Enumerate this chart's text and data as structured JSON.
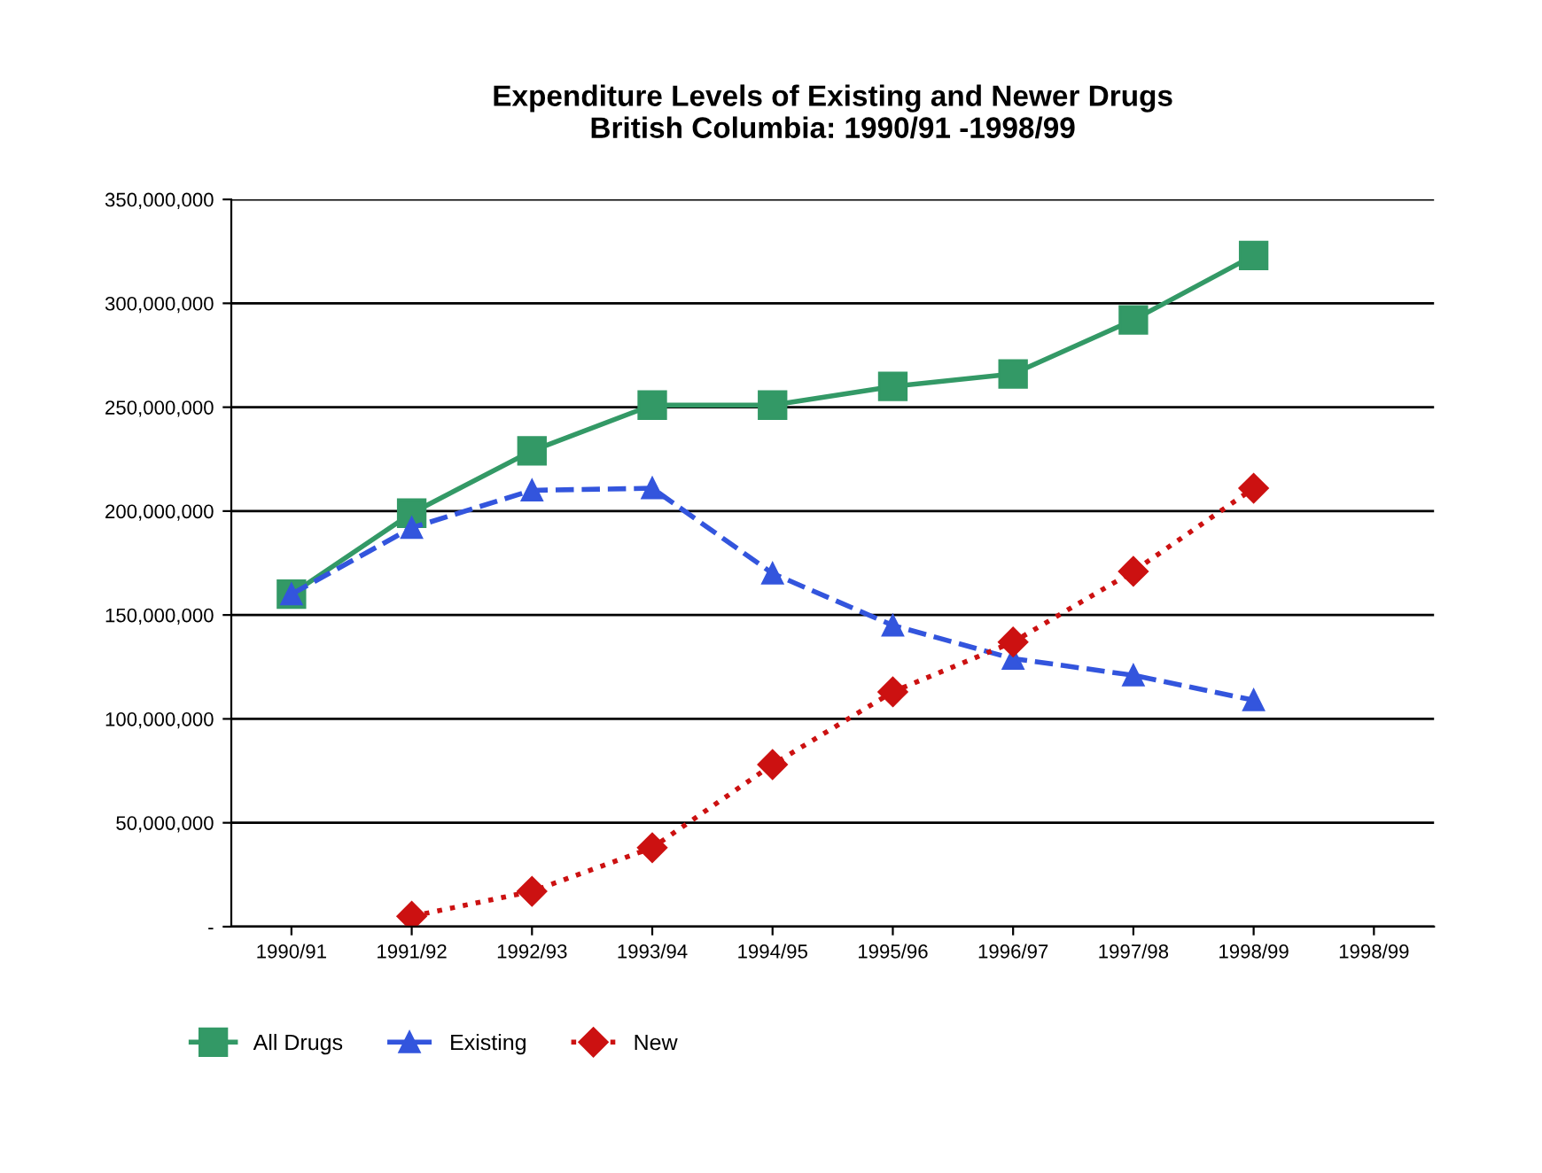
{
  "chart_data": {
    "type": "line",
    "title": "Expenditure Levels of Existing and Newer Drugs\nBritish Columbia: 1990/91 -1998/99",
    "categories": [
      "1990/91",
      "1991/92",
      "1992/93",
      "1993/94",
      "1994/95",
      "1995/96",
      "1996/97",
      "1997/98",
      "1998/99",
      "1998/99"
    ],
    "series": [
      {
        "name": "All Drugs",
        "color": "#339966",
        "marker": "square",
        "line_style": "solid",
        "values": [
          160000000,
          199000000,
          229000000,
          251000000,
          251000000,
          260000000,
          266000000,
          292000000,
          323000000,
          null
        ]
      },
      {
        "name": "Existing",
        "color": "#3355dd",
        "marker": "triangle",
        "line_style": "dashed",
        "values": [
          160000000,
          192000000,
          210000000,
          211000000,
          170000000,
          145000000,
          129000000,
          121000000,
          109000000,
          null
        ]
      },
      {
        "name": "New",
        "color": "#cc1111",
        "marker": "diamond",
        "line_style": "dotted",
        "values": [
          null,
          5000000,
          17000000,
          38000000,
          78000000,
          113000000,
          137000000,
          171000000,
          211000000,
          null
        ]
      }
    ],
    "ylim": [
      0,
      350000000
    ],
    "yticks": [
      {
        "value": 0,
        "label": "-"
      },
      {
        "value": 50000000,
        "label": "50,000,000"
      },
      {
        "value": 100000000,
        "label": "100,000,000"
      },
      {
        "value": 150000000,
        "label": "150,000,000"
      },
      {
        "value": 200000000,
        "label": "200,000,000"
      },
      {
        "value": 250000000,
        "label": "250,000,000"
      },
      {
        "value": 300000000,
        "label": "300,000,000"
      },
      {
        "value": 350000000,
        "label": "350,000,000"
      }
    ],
    "grid": "y",
    "legend": "bottom"
  }
}
